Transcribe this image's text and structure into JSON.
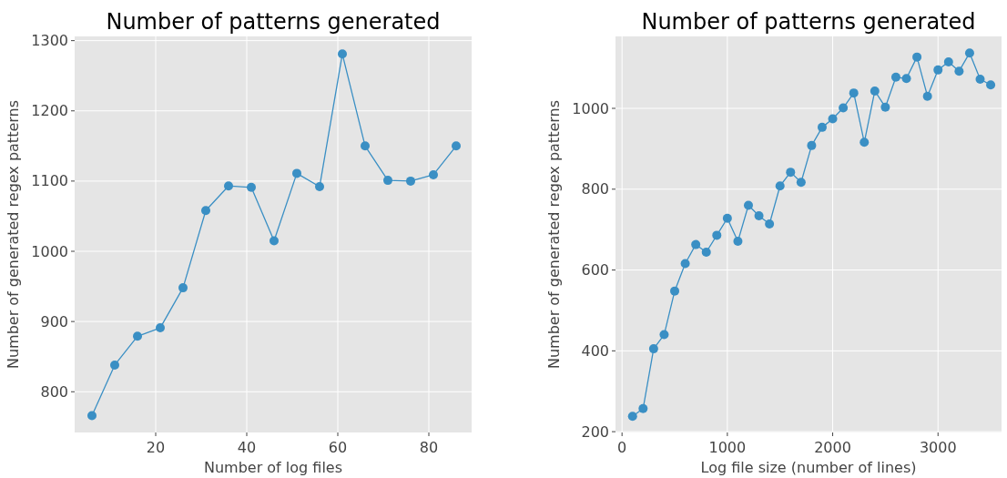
{
  "chart_data": [
    {
      "type": "line",
      "title": "Number of patterns generated",
      "xlabel": "Number of log files",
      "ylabel": "Number of generated regex patterns",
      "x": [
        6,
        11,
        16,
        21,
        26,
        31,
        36,
        41,
        46,
        51,
        56,
        61,
        66,
        71,
        76,
        81,
        86
      ],
      "series": [
        {
          "color": "#3a8fc4",
          "values": [
            766,
            838,
            879,
            891,
            948,
            1058,
            1093,
            1091,
            1015,
            1111,
            1092,
            1281,
            1150,
            1101,
            1100,
            1109,
            1150
          ]
        }
      ],
      "xlim": [
        2.2,
        89.4
      ],
      "ylim": [
        742,
        1306
      ],
      "xticks": [
        20,
        40,
        60,
        80
      ],
      "yticks": [
        800,
        900,
        1000,
        1100,
        1200,
        1300
      ],
      "grid": true,
      "marker": "circle"
    },
    {
      "type": "line",
      "title": "Number of patterns generated",
      "xlabel": "Log file size (number of lines)",
      "ylabel": "Number of generated regex patterns",
      "x": [
        100,
        200,
        300,
        400,
        500,
        600,
        700,
        800,
        900,
        1000,
        1100,
        1200,
        1300,
        1400,
        1500,
        1600,
        1700,
        1800,
        1900,
        2000,
        2100,
        2200,
        2300,
        2400,
        2500,
        2600,
        2700,
        2800,
        2900,
        3000,
        3100,
        3200,
        3300,
        3400,
        3500
      ],
      "series": [
        {
          "color": "#3a8fc4",
          "values": [
            238,
            257,
            405,
            440,
            548,
            616,
            663,
            644,
            686,
            728,
            671,
            760,
            734,
            714,
            808,
            842,
            817,
            908,
            953,
            974,
            1001,
            1038,
            916,
            1043,
            1003,
            1077,
            1074,
            1127,
            1030,
            1095,
            1115,
            1092,
            1137,
            1072,
            1058
          ]
        }
      ],
      "xlim": [
        -62,
        3603
      ],
      "ylim": [
        198,
        1178
      ],
      "xticks": [
        0,
        1000,
        2000,
        3000
      ],
      "yticks": [
        200,
        400,
        600,
        800,
        1000
      ],
      "grid": true,
      "marker": "circle"
    }
  ]
}
